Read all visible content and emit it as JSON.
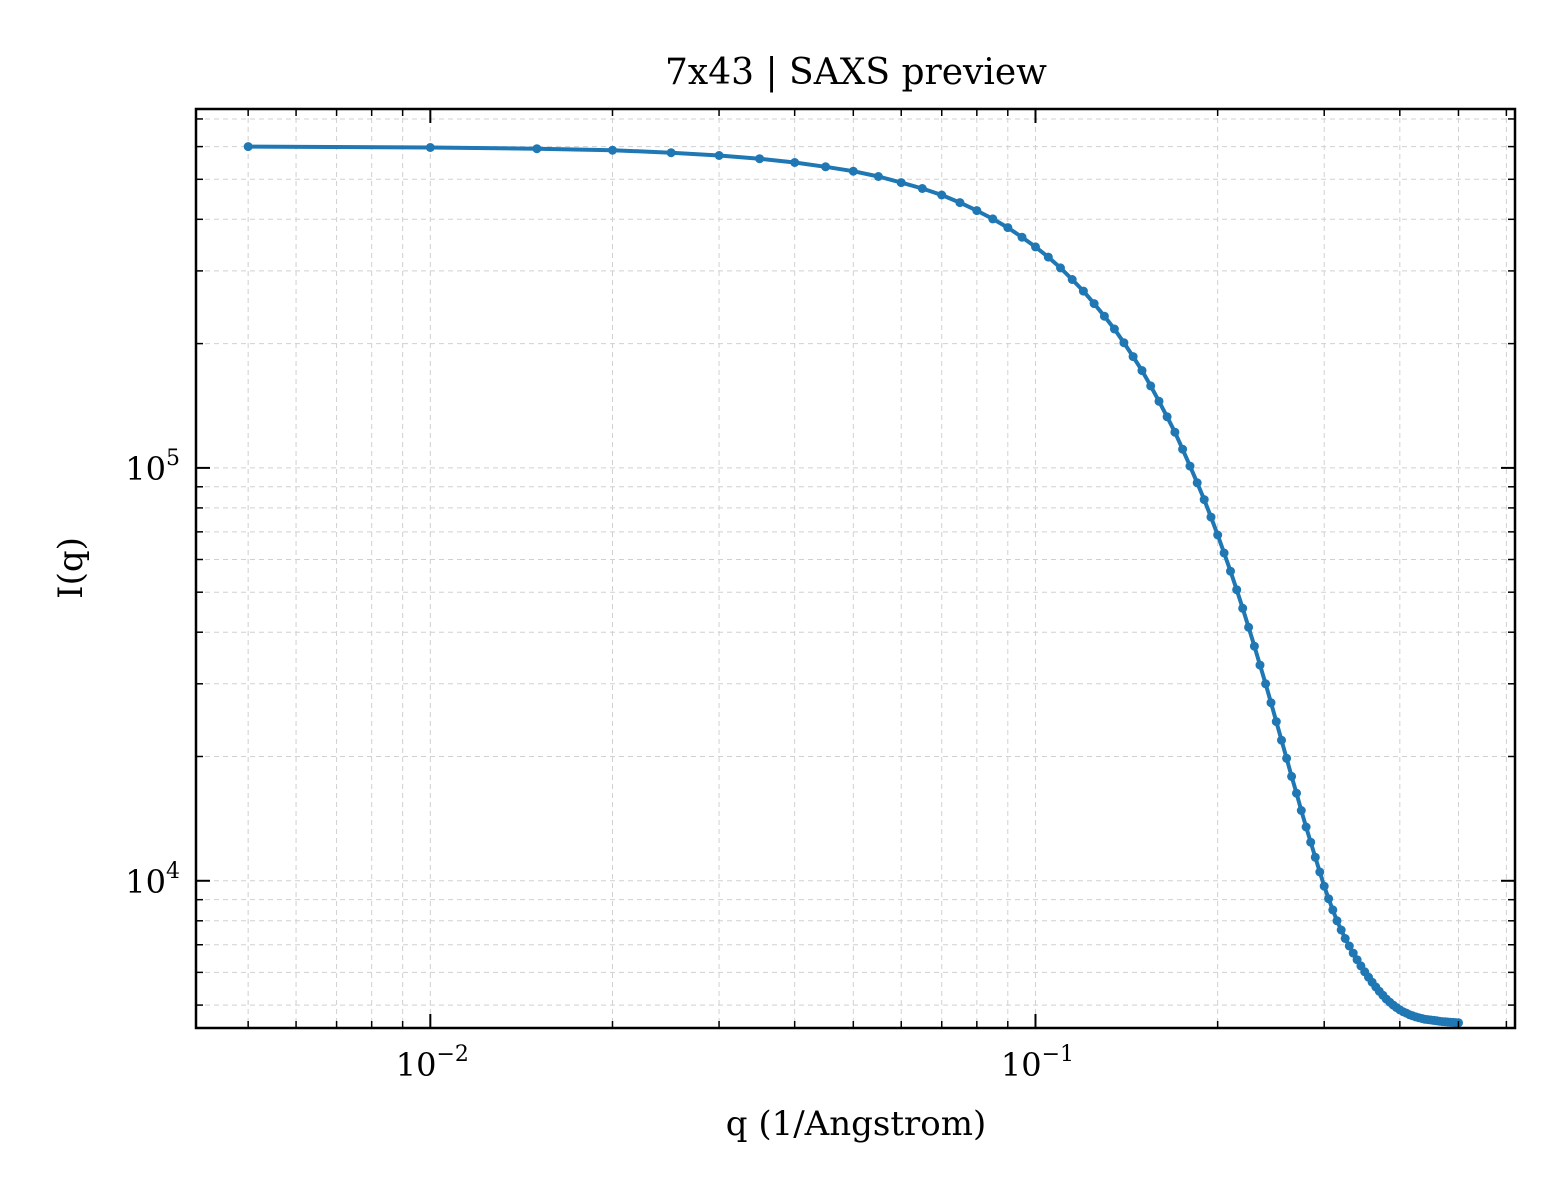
{
  "chart_data": {
    "type": "line",
    "title": "7x43 | SAXS preview",
    "xlabel": "q (1/Angstrom)",
    "ylabel": "I(q)",
    "xscale": "log",
    "yscale": "log",
    "xlim": [
      0.0041,
      0.62
    ],
    "ylim": [
      4400,
      740000
    ],
    "grid": true,
    "legend": "none",
    "x_ticks": [
      {
        "value": 0.01,
        "base": "10",
        "exp": "−2"
      },
      {
        "value": 0.1,
        "base": "10",
        "exp": "−1"
      }
    ],
    "y_ticks": [
      {
        "value": 10000,
        "base": "10",
        "exp": "4"
      },
      {
        "value": 100000,
        "base": "10",
        "exp": "5"
      }
    ],
    "series": [
      {
        "color": "#1f77b4",
        "markers": true,
        "x": [
          0.005,
          0.01,
          0.015,
          0.02,
          0.025,
          0.03,
          0.035,
          0.04,
          0.045,
          0.05,
          0.055,
          0.06,
          0.065,
          0.07,
          0.075,
          0.08,
          0.085,
          0.09,
          0.095,
          0.1,
          0.105,
          0.11,
          0.115,
          0.12,
          0.125,
          0.13,
          0.135,
          0.14,
          0.145,
          0.15,
          0.155,
          0.16,
          0.165,
          0.17,
          0.175,
          0.18,
          0.185,
          0.19,
          0.195,
          0.2,
          0.205,
          0.21,
          0.215,
          0.22,
          0.225,
          0.23,
          0.235,
          0.24,
          0.245,
          0.25,
          0.255,
          0.26,
          0.265,
          0.27,
          0.275,
          0.28,
          0.285,
          0.29,
          0.295,
          0.3,
          0.305,
          0.31,
          0.315,
          0.32,
          0.325,
          0.33,
          0.335,
          0.34,
          0.345,
          0.35,
          0.355,
          0.36,
          0.365,
          0.37,
          0.375,
          0.38,
          0.385,
          0.39,
          0.395,
          0.4,
          0.405,
          0.41,
          0.415,
          0.42,
          0.425,
          0.43,
          0.435,
          0.44,
          0.445,
          0.45,
          0.455,
          0.46,
          0.465,
          0.47,
          0.475,
          0.48,
          0.485,
          0.49,
          0.495,
          0.5
        ],
        "y": [
          600000,
          597000,
          593000,
          588000,
          580000,
          571000,
          561000,
          549000,
          536000,
          523000,
          508000,
          491000,
          475000,
          458000,
          439000,
          420000,
          401000,
          382000,
          362000,
          343000,
          324000,
          305000,
          286000,
          268000,
          250000,
          233000,
          217000,
          201000,
          186000,
          172000,
          158000,
          145000,
          133000,
          122000,
          111000,
          101000,
          92000,
          83800,
          76000,
          68800,
          62200,
          56200,
          50700,
          45700,
          41100,
          37000,
          33300,
          30000,
          27000,
          24300,
          21900,
          19800,
          17900,
          16300,
          14800,
          13500,
          12400,
          11400,
          10500,
          9700,
          9050,
          8500,
          8000,
          7600,
          7250,
          6950,
          6680,
          6440,
          6220,
          6020,
          5840,
          5680,
          5530,
          5400,
          5280,
          5170,
          5080,
          5000,
          4930,
          4870,
          4820,
          4780,
          4740,
          4710,
          4680,
          4660,
          4640,
          4620,
          4610,
          4600,
          4590,
          4580,
          4570,
          4560,
          4555,
          4550,
          4545,
          4540,
          4535,
          4530
        ]
      }
    ]
  }
}
